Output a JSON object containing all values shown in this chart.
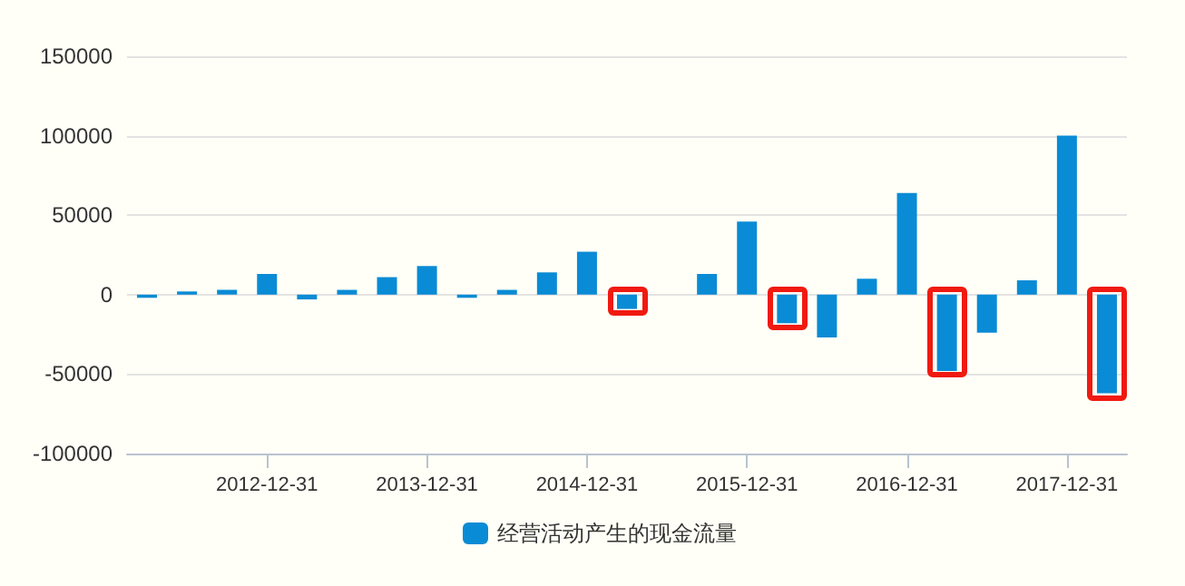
{
  "chart_data": {
    "type": "bar",
    "categories": [
      null,
      null,
      null,
      "2012-12-31",
      null,
      null,
      null,
      "2013-12-31",
      null,
      null,
      null,
      "2014-12-31",
      null,
      null,
      null,
      "2015-12-31",
      null,
      null,
      null,
      "2016-12-31",
      null,
      null,
      null,
      "2017-12-31",
      null
    ],
    "series": [
      {
        "name": "经营活动产生的现金流量",
        "color": "#0a8bd5",
        "values": [
          -2000,
          2000,
          3000,
          13000,
          -3000,
          3000,
          11000,
          18000,
          -2000,
          3000,
          14000,
          27000,
          -9000,
          null,
          13000,
          46000,
          -18000,
          -27000,
          10000,
          64000,
          -48000,
          -24000,
          9000,
          100000,
          -62000
        ]
      }
    ],
    "ylim": [
      -100000,
      150000
    ],
    "yticks": [
      -100000,
      -50000,
      0,
      50000,
      100000,
      150000
    ],
    "grid": "y",
    "legend": "bottom"
  }
}
